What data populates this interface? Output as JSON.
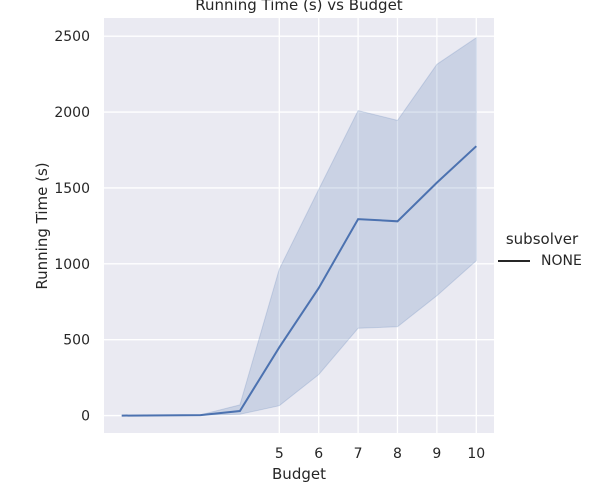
{
  "chart_data": {
    "type": "line",
    "title": "Running Time (s) vs Budget",
    "xlabel": "Budget",
    "ylabel": "Running Time (s)",
    "x": [
      1,
      3,
      4,
      5,
      6,
      7,
      8,
      9,
      10
    ],
    "xticks": [
      5,
      6,
      7,
      8,
      9,
      10
    ],
    "yticks": [
      0,
      500,
      1000,
      1500,
      2000,
      2500
    ],
    "xlim": [
      0.55,
      10.45
    ],
    "ylim": [
      -115,
      2620
    ],
    "series": [
      {
        "name": "NONE",
        "values": [
          0,
          3,
          30,
          450,
          840,
          1295,
          1280,
          1535,
          1775
        ],
        "ci_lower": [
          0,
          2,
          8,
          65,
          270,
          575,
          585,
          790,
          1020
        ],
        "ci_upper": [
          0,
          5,
          70,
          965,
          1490,
          2010,
          1945,
          2315,
          2490
        ],
        "color": "#4c72b0"
      }
    ],
    "legend": {
      "title": "subsolver",
      "placement": "right"
    },
    "grid": true,
    "style": {
      "background": "#eaeaf2",
      "grid_color": "#ffffff"
    }
  }
}
